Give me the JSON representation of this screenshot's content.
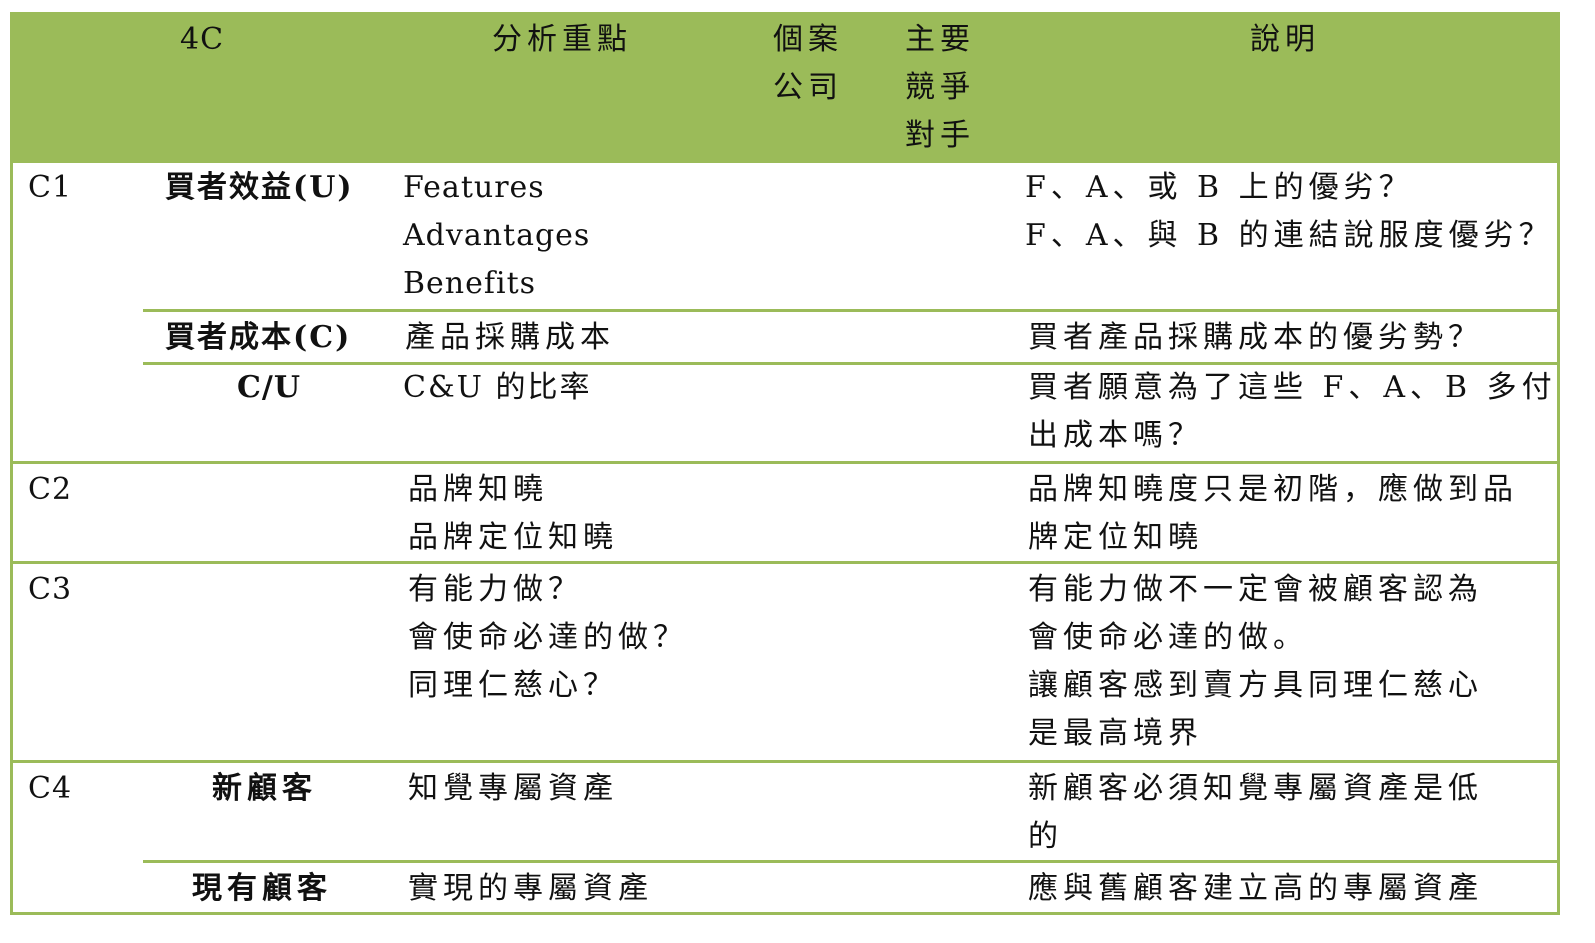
{
  "colors": {
    "accent": "#9bbb59"
  },
  "header": {
    "col_4c": "4C",
    "col_focus": "分析重點",
    "col_case": [
      "個案",
      "公司"
    ],
    "col_competitor": [
      "主要",
      "競爭",
      "對手"
    ],
    "col_explain": "說明"
  },
  "rows": {
    "c1": {
      "label": "C1",
      "benefit": {
        "label": "買者效益(U)",
        "focus": [
          "Features",
          "Advantages",
          "Benefits"
        ],
        "explain": [
          "F、A、或 B 上的優劣？",
          "F、A、與 B 的連結說服度優劣？"
        ]
      },
      "cost": {
        "label": "買者成本(C)",
        "focus": [
          "產品採購成本"
        ],
        "explain": [
          "買者產品採購成本的優劣勢？"
        ]
      },
      "ratio": {
        "label": "C/U",
        "focus": [
          "C&U 的比率"
        ],
        "explain": [
          "買者願意為了這些 F、A、B 多付",
          "出成本嗎？"
        ]
      }
    },
    "c2": {
      "label": "C2",
      "focus": [
        "品牌知曉",
        "品牌定位知曉"
      ],
      "explain": [
        "品牌知曉度只是初階，應做到品",
        "牌定位知曉"
      ]
    },
    "c3": {
      "label": "C3",
      "focus": [
        "有能力做？",
        "會使命必達的做？",
        "同理仁慈心？"
      ],
      "explain": [
        "有能力做不一定會被顧客認為",
        "會使命必達的做。",
        "讓顧客感到賣方具同理仁慈心",
        "是最高境界"
      ]
    },
    "c4": {
      "label": "C4",
      "new": {
        "label": "新顧客",
        "focus": [
          "知覺專屬資產"
        ],
        "explain": [
          "新顧客必須知覺專屬資產是低",
          "的"
        ]
      },
      "existing": {
        "label": "現有顧客",
        "focus": [
          "實現的專屬資產"
        ],
        "explain": [
          "應與舊顧客建立高的專屬資產"
        ]
      }
    }
  }
}
